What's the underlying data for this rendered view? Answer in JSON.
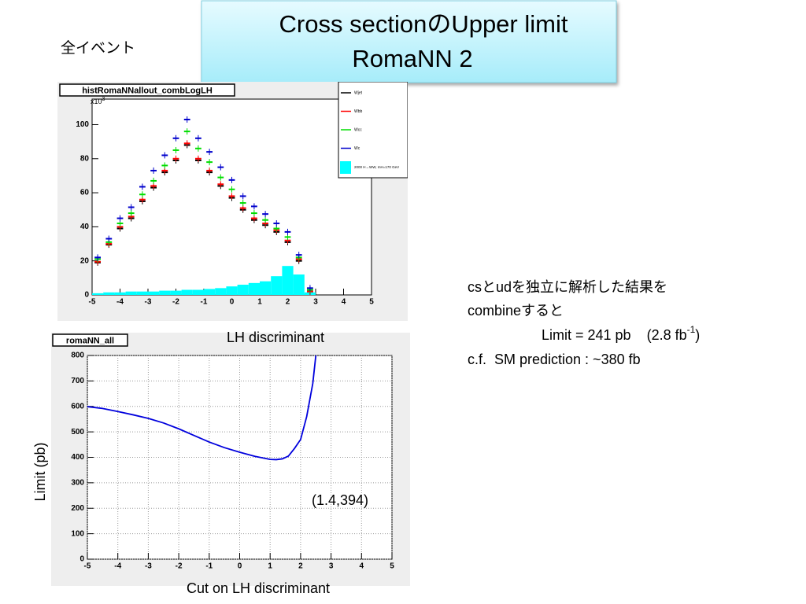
{
  "slide": {
    "title": [
      "Cross sectionのUpper limit",
      "RomaNN 2"
    ],
    "subtitle": "全イベント",
    "notes": {
      "line1": "csとudを独立に解析した結果を",
      "line2": "combineすると",
      "line3": {
        "text": "Limit = 241 pb    (2.8 fb",
        "sup": "-1",
        "end": ")"
      },
      "line4": "c.f.  SM prediction : ~380 fb"
    }
  },
  "chart_data": [
    {
      "type": "hist",
      "title": "histRomaNNallout_combLogLH",
      "y_multiplier": {
        "base": "x10",
        "exponent": "3"
      },
      "xlabel": "LH discriminant",
      "x": [
        -4.8,
        -4.4,
        -4.0,
        -3.6,
        -3.2,
        -2.8,
        -2.4,
        -2.0,
        -1.6,
        -1.2,
        -0.8,
        -0.4,
        0.0,
        0.4,
        0.8,
        1.2,
        1.6,
        2.0,
        2.4,
        2.8
      ],
      "series": [
        {
          "name": "Wjet",
          "color": "#000000",
          "values": [
            19,
            29.5,
            39,
            45,
            55,
            63,
            72,
            79,
            88,
            79,
            72,
            64,
            57,
            50,
            44,
            41,
            37,
            31,
            20,
            2
          ]
        },
        {
          "name": "Wbb",
          "color": "#ff0000",
          "values": [
            19.5,
            30,
            40,
            46,
            56,
            64,
            73,
            80,
            89,
            80,
            73,
            65,
            58,
            51,
            45,
            42,
            38,
            32,
            21,
            2
          ]
        },
        {
          "name": "Wcc",
          "color": "#00dd00",
          "values": [
            21,
            31,
            42,
            48,
            59,
            67,
            76,
            85,
            96,
            86,
            78,
            69,
            62,
            54,
            48,
            44,
            39,
            34,
            22,
            3
          ]
        },
        {
          "name": "Wc",
          "color": "#0000cc",
          "values": [
            22,
            33,
            45,
            51.5,
            63.5,
            73,
            82,
            92,
            103,
            92,
            84,
            75,
            67.5,
            58,
            52,
            47.5,
            42,
            37,
            23.5,
            4
          ]
        }
      ],
      "histogram": {
        "name": "2000 H→WW, mH=170 GeV",
        "color": "#00ffff",
        "bins": [
          -5.0,
          -4.6,
          -4.2,
          -3.8,
          -3.4,
          -3.0,
          -2.6,
          -2.2,
          -1.8,
          -1.4,
          -1.0,
          -0.6,
          -0.2,
          0.2,
          0.6,
          1.0,
          1.4,
          1.8,
          2.2,
          2.6,
          3.0
        ],
        "counts": [
          1,
          1.5,
          1.5,
          2,
          2,
          2,
          2.5,
          2.5,
          3,
          3,
          3.5,
          4,
          5,
          6,
          7,
          8,
          11,
          17,
          12,
          1.5
        ]
      },
      "xlim": [
        -5,
        5
      ],
      "ylim": [
        0,
        115
      ],
      "xticks": [
        -5,
        -4,
        -3,
        -2,
        -1,
        0,
        1,
        2,
        3,
        4,
        5
      ],
      "yticks": [
        0,
        20,
        40,
        60,
        80,
        100
      ],
      "grid": false
    },
    {
      "type": "line",
      "title": "romaNN_all",
      "xlabel": "Cut on LH discriminant",
      "ylabel": "Limit (pb)",
      "annotation": "(1.4,394)",
      "x": [
        -5,
        -4.5,
        -4,
        -3.5,
        -3,
        -2.5,
        -2,
        -1.5,
        -1,
        -0.5,
        0,
        0.5,
        1,
        1.2,
        1.4,
        1.6,
        1.8,
        2.0,
        2.2,
        2.4,
        2.5
      ],
      "series": [
        {
          "color": "#0000dd",
          "values": [
            599,
            592,
            580,
            567,
            553,
            535,
            512,
            486,
            460,
            438,
            420,
            404,
            392,
            391,
            394,
            405,
            435,
            470,
            560,
            690,
            800
          ]
        }
      ],
      "xlim": [
        -5,
        5
      ],
      "ylim": [
        0,
        800
      ],
      "xticks": [
        -5,
        -4,
        -3,
        -2,
        -1,
        0,
        1,
        2,
        3,
        4,
        5
      ],
      "yticks": [
        0,
        100,
        200,
        300,
        400,
        500,
        600,
        700,
        800
      ],
      "grid": true
    }
  ]
}
